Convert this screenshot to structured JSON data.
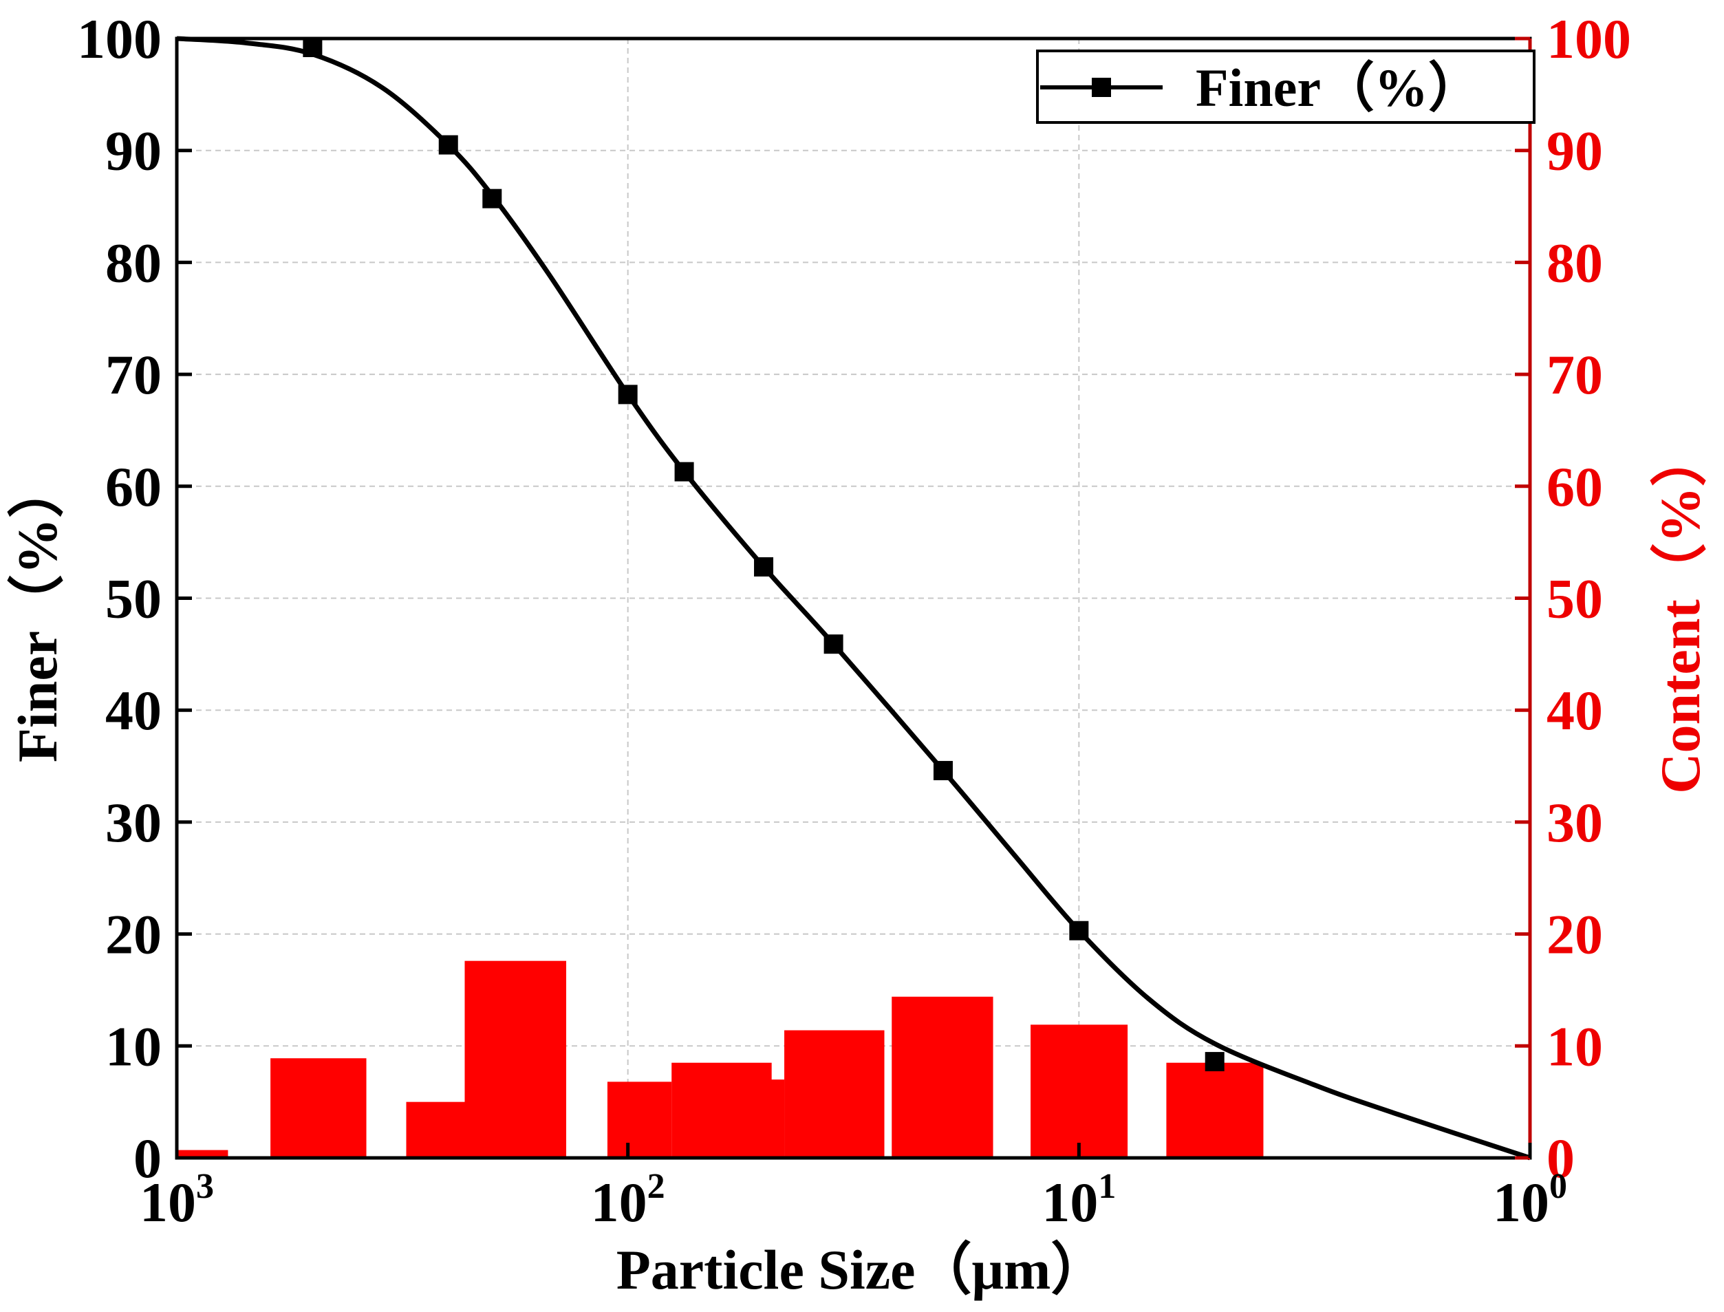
{
  "chart_data": {
    "type": "line+bar",
    "xscale": "log",
    "xaxis": {
      "label": "Particle Size（μm）",
      "direction": "reversed",
      "range": [
        1000,
        1
      ],
      "ticks": [
        {
          "value": 1000,
          "base": "10",
          "exp": "3"
        },
        {
          "value": 100,
          "base": "10",
          "exp": "2"
        },
        {
          "value": 10,
          "base": "10",
          "exp": "1"
        },
        {
          "value": 1,
          "base": "10",
          "exp": "0"
        }
      ]
    },
    "yaxis_left": {
      "label": "Finer（%）",
      "range": [
        0,
        100
      ],
      "ticks": [
        "0",
        "10",
        "20",
        "30",
        "40",
        "50",
        "60",
        "70",
        "80",
        "90",
        "100"
      ],
      "color": "#000000"
    },
    "yaxis_right": {
      "label": "Content（%）",
      "range": [
        0,
        100
      ],
      "ticks": [
        "0",
        "10",
        "20",
        "30",
        "40",
        "50",
        "60",
        "70",
        "80",
        "90",
        "100"
      ],
      "color": "#ee0000"
    },
    "grid": true,
    "legend": {
      "position": "top-right",
      "label": "Finer（%）"
    },
    "series": [
      {
        "name": "Finer（%）",
        "kind": "line",
        "color": "#000000",
        "points": [
          {
            "x": 500,
            "y": 99.2
          },
          {
            "x": 250,
            "y": 90.5
          },
          {
            "x": 200,
            "y": 85.7
          },
          {
            "x": 100,
            "y": 68.2
          },
          {
            "x": 75,
            "y": 61.3
          },
          {
            "x": 50,
            "y": 52.8
          },
          {
            "x": 35,
            "y": 45.9
          },
          {
            "x": 20,
            "y": 34.6
          },
          {
            "x": 10,
            "y": 20.3
          },
          {
            "x": 5,
            "y": 8.6
          }
        ],
        "curve": [
          {
            "x": 1000,
            "y": 100
          },
          {
            "x": 700,
            "y": 99.6
          },
          {
            "x": 500,
            "y": 98.6
          },
          {
            "x": 350,
            "y": 95.6
          },
          {
            "x": 250,
            "y": 90.5
          },
          {
            "x": 200,
            "y": 86.0
          },
          {
            "x": 150,
            "y": 79.0
          },
          {
            "x": 100,
            "y": 68.2
          },
          {
            "x": 75,
            "y": 61.3
          },
          {
            "x": 50,
            "y": 52.8
          },
          {
            "x": 35,
            "y": 45.9
          },
          {
            "x": 20,
            "y": 34.6
          },
          {
            "x": 14,
            "y": 27.2
          },
          {
            "x": 10,
            "y": 20.3
          },
          {
            "x": 7,
            "y": 14.2
          },
          {
            "x": 5,
            "y": 10.2
          },
          {
            "x": 3,
            "y": 6.5
          },
          {
            "x": 2,
            "y": 4.0
          },
          {
            "x": 1,
            "y": 0
          }
        ]
      },
      {
        "name": "Content（%）",
        "kind": "bar",
        "color": "#ff0000",
        "bars": [
          {
            "x_from": 1000,
            "x_to": 770,
            "value": 0.7
          },
          {
            "x_from": 620,
            "x_to": 380,
            "value": 8.9
          },
          {
            "x_from": 310,
            "x_to": 230,
            "value": 5.0
          },
          {
            "x_from": 230,
            "x_to": 137,
            "value": 17.6
          },
          {
            "x_from": 111,
            "x_to": 80,
            "value": 6.8
          },
          {
            "x_from": 80,
            "x_to": 48,
            "value": 8.5
          },
          {
            "x_from": 60,
            "x_to": 45,
            "value": 7.0
          },
          {
            "x_from": 45,
            "x_to": 27,
            "value": 11.4
          },
          {
            "x_from": 26,
            "x_to": 15.5,
            "value": 14.4
          },
          {
            "x_from": 12.8,
            "x_to": 7.8,
            "value": 11.9
          },
          {
            "x_from": 6.4,
            "x_to": 3.9,
            "value": 8.5
          }
        ]
      }
    ]
  }
}
